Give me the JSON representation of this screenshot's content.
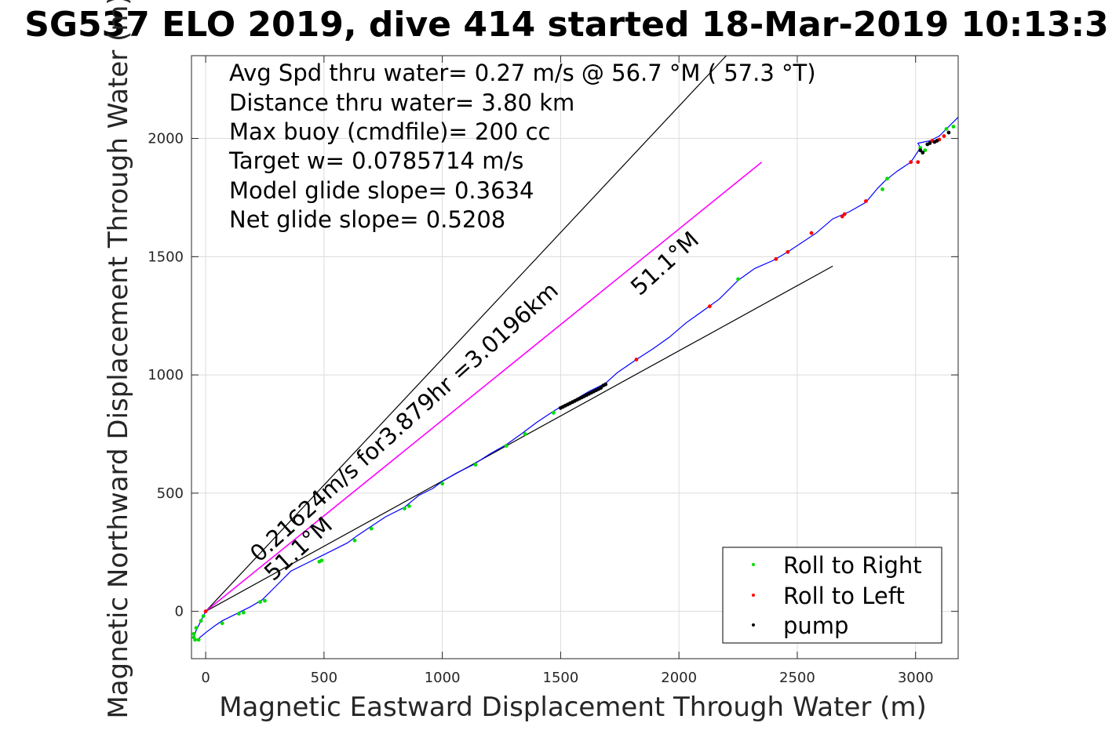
{
  "chart_data": {
    "type": "line",
    "title": "SG537 ELO 2019, dive 414 started 18-Mar-2019 10:13:3",
    "xlabel": "Magnetic Eastward Displacement Through Water (m)",
    "ylabel": "Magnetic Northward Displacement Through Water (m)",
    "xlim": [
      -60,
      3180
    ],
    "ylim": [
      -200,
      2350
    ],
    "xticks": [
      0,
      500,
      1000,
      1500,
      2000,
      2500,
      3000
    ],
    "yticks": [
      0,
      500,
      1000,
      1500,
      2000
    ],
    "grid": true,
    "legend_position": "bottom-right",
    "colors": {
      "track": "#0000ff",
      "roll_right": "#00dd00",
      "roll_left": "#ff0000",
      "pump": "#000000",
      "current": "#ff00ff",
      "reference": "#000000"
    },
    "annotations": [
      "Avg Spd thru water=  0.27 m/s @  56.7 °M ( 57.3 °T)",
      "Distance thru water=  3.80 km",
      "Max buoy (cmdfile)= 200 cc",
      "Target w= 0.0785714 m/s",
      "Model glide slope= 0.3634",
      "Net glide slope= 0.5208"
    ],
    "rotated_labels": {
      "current": "0.21624m/s for3.879hr =3.0196km",
      "heading_1": "51.1°M",
      "heading_2": "51.1°M"
    },
    "legend": [
      "Roll to Right",
      "Roll to Left",
      "pump"
    ],
    "series": [
      {
        "name": "Track",
        "x": [
          0,
          -20,
          -40,
          -50,
          -45,
          -30,
          0,
          40,
          70,
          110,
          150,
          190,
          240,
          300,
          360,
          420,
          480,
          540,
          600,
          640,
          700,
          760,
          840,
          900,
          960,
          1000,
          1060,
          1130,
          1200,
          1270,
          1340,
          1400,
          1460,
          1500,
          1560,
          1620,
          1690,
          1740,
          1820,
          1890,
          1960,
          2030,
          2100,
          2170,
          2250,
          2320,
          2400,
          2460,
          2520,
          2580,
          2650,
          2720,
          2790,
          2840,
          2870,
          2920,
          2980,
          3000,
          3020,
          3010,
          3060,
          3100,
          3120,
          3180
        ],
        "y": [
          0,
          -40,
          -80,
          -110,
          -125,
          -115,
          -90,
          -60,
          -40,
          -20,
          0,
          20,
          50,
          110,
          170,
          200,
          230,
          260,
          290,
          320,
          360,
          400,
          440,
          490,
          520,
          550,
          585,
          620,
          665,
          705,
          755,
          800,
          840,
          865,
          895,
          930,
          965,
          1010,
          1065,
          1110,
          1160,
          1220,
          1270,
          1320,
          1400,
          1450,
          1485,
          1520,
          1560,
          1600,
          1660,
          1690,
          1730,
          1790,
          1820,
          1860,
          1900,
          1930,
          1960,
          1980,
          1990,
          2010,
          2030,
          2090
        ]
      },
      {
        "name": "Roll to Right"
      },
      {
        "name": "Roll to Left"
      },
      {
        "name": "pump"
      }
    ],
    "roll_right_points": [
      [
        -50,
        -110
      ],
      [
        -45,
        -120
      ],
      [
        -30,
        -120
      ],
      [
        -50,
        -95
      ],
      [
        -40,
        -70
      ],
      [
        -20,
        -40
      ],
      [
        -10,
        -20
      ],
      [
        70,
        -50
      ],
      [
        140,
        -10
      ],
      [
        160,
        -5
      ],
      [
        230,
        40
      ],
      [
        250,
        45
      ],
      [
        480,
        210
      ],
      [
        490,
        215
      ],
      [
        630,
        300
      ],
      [
        700,
        350
      ],
      [
        840,
        435
      ],
      [
        860,
        445
      ],
      [
        1000,
        540
      ],
      [
        1140,
        620
      ],
      [
        1270,
        700
      ],
      [
        1350,
        750
      ],
      [
        1470,
        840
      ],
      [
        2250,
        1405
      ],
      [
        2860,
        1785
      ],
      [
        2880,
        1830
      ],
      [
        3020,
        1960
      ],
      [
        3040,
        1950
      ],
      [
        3130,
        2040
      ],
      [
        3160,
        2050
      ]
    ],
    "roll_left_points": [
      [
        0,
        0
      ],
      [
        1820,
        1065
      ],
      [
        2130,
        1290
      ],
      [
        2410,
        1490
      ],
      [
        2460,
        1520
      ],
      [
        2560,
        1600
      ],
      [
        2690,
        1670
      ],
      [
        2700,
        1680
      ],
      [
        2790,
        1735
      ],
      [
        2980,
        1900
      ],
      [
        3010,
        1900
      ],
      [
        3070,
        1990
      ],
      [
        3100,
        1995
      ],
      [
        3120,
        2010
      ]
    ],
    "pump_points": [
      [
        1500,
        860
      ],
      [
        1510,
        865
      ],
      [
        1520,
        870
      ],
      [
        1530,
        875
      ],
      [
        1540,
        880
      ],
      [
        1550,
        885
      ],
      [
        1560,
        890
      ],
      [
        1570,
        895
      ],
      [
        1580,
        900
      ],
      [
        1590,
        905
      ],
      [
        1600,
        910
      ],
      [
        1610,
        915
      ],
      [
        1620,
        920
      ],
      [
        1630,
        925
      ],
      [
        1640,
        930
      ],
      [
        1650,
        935
      ],
      [
        1660,
        940
      ],
      [
        1670,
        945
      ],
      [
        1680,
        955
      ],
      [
        1690,
        960
      ],
      [
        3020,
        1950
      ],
      [
        3030,
        1940
      ],
      [
        3050,
        1975
      ],
      [
        3060,
        1980
      ],
      [
        3080,
        1985
      ],
      [
        3090,
        1990
      ],
      [
        3140,
        2025
      ]
    ],
    "lines": {
      "current": {
        "x": [
          0,
          2350
        ],
        "y": [
          0,
          1900
        ]
      },
      "reference_upper": {
        "x": [
          0,
          2200
        ],
        "y": [
          0,
          2350
        ]
      },
      "reference_lower": {
        "x": [
          0,
          2650
        ],
        "y": [
          0,
          1460
        ]
      }
    }
  }
}
